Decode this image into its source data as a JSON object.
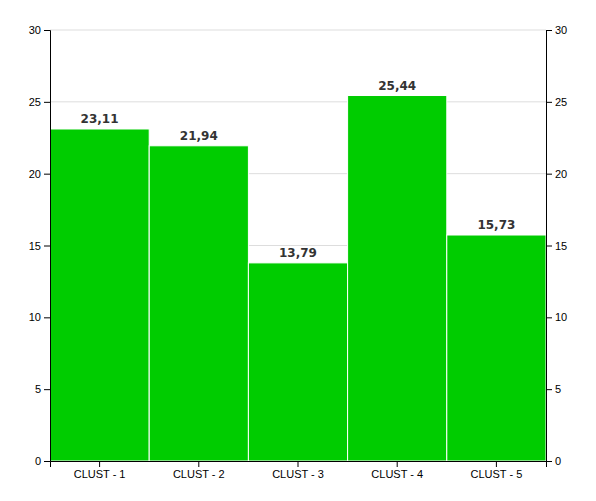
{
  "chart_data": {
    "type": "bar",
    "categories": [
      "CLUST - 1",
      "CLUST - 2",
      "CLUST - 3",
      "CLUST - 4",
      "CLUST - 5"
    ],
    "values": [
      23.11,
      21.94,
      13.79,
      25.44,
      15.73
    ],
    "value_labels": [
      "23,11",
      "21,94",
      "13,79",
      "25,44",
      "15,73"
    ],
    "data_labels": true,
    "color": "#00CC00",
    "ylim": [
      0,
      30
    ],
    "yticks": [
      0,
      5,
      10,
      15,
      20,
      25,
      30
    ],
    "y2lim": [
      0,
      30
    ],
    "y2ticks": [
      0,
      5,
      10,
      15,
      20,
      25,
      30
    ],
    "grid": true
  }
}
